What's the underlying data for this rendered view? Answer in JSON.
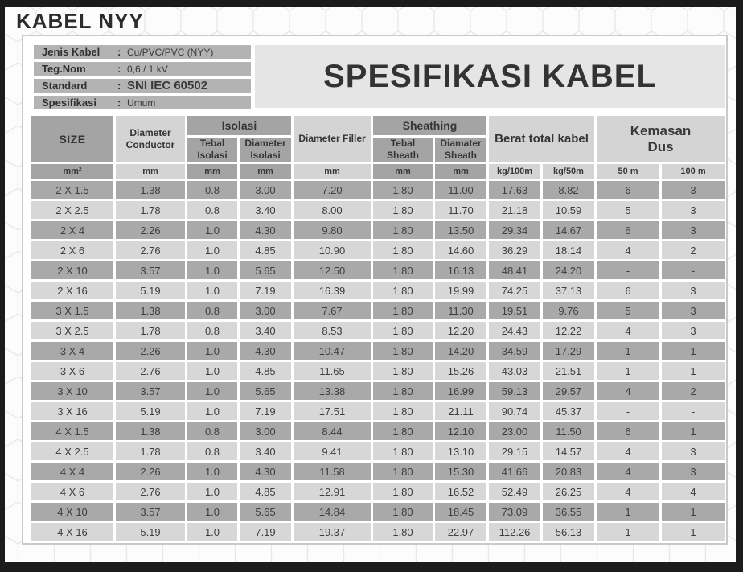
{
  "title": "KABEL NYY",
  "spec_title": "SPESIFIKASI KABEL",
  "info": {
    "colon": ":",
    "rows": [
      {
        "label": "Jenis Kabel",
        "value": "Cu/PVC/PVC (NYY)"
      },
      {
        "label": "Teg.Nom",
        "value": "0,6 / 1 kV"
      },
      {
        "label": "Standard",
        "value": "SNI IEC 60502"
      },
      {
        "label": "Spesifikasi",
        "value": "Umum"
      }
    ]
  },
  "table": {
    "headers": {
      "size": "SIZE",
      "diameter_conductor": "Diameter Conductor",
      "isolasi_group": "Isolasi",
      "tebal_isolasi": "Tebal Isolasi",
      "diameter_isolasi": "Diameter Isolasi",
      "diameter_filler": "Diameter Filler",
      "sheathing_group": "Sheathing",
      "tebal_sheath": "Tebal Sheath",
      "diamater_sheath": "Diamater Sheath",
      "berat_total": "Berat total kabel",
      "kemasan_dus": "Kemasan Dus"
    },
    "units": [
      "mm²",
      "mm",
      "mm",
      "mm",
      "mm",
      "mm",
      "mm",
      "kg/100m",
      "kg/50m",
      "50 m",
      "100 m"
    ],
    "unit_gray_columns": [
      0,
      2,
      3,
      5,
      6
    ],
    "rows": [
      [
        "2 X 1.5",
        "1.38",
        "0.8",
        "3.00",
        "7.20",
        "1.80",
        "11.00",
        "17.63",
        "8.82",
        "6",
        "3"
      ],
      [
        "2 X 2.5",
        "1.78",
        "0.8",
        "3.40",
        "8.00",
        "1.80",
        "11.70",
        "21.18",
        "10.59",
        "5",
        "3"
      ],
      [
        "2 X 4",
        "2.26",
        "1.0",
        "4.30",
        "9.80",
        "1.80",
        "13.50",
        "29.34",
        "14.67",
        "6",
        "3"
      ],
      [
        "2 X 6",
        "2.76",
        "1.0",
        "4.85",
        "10.90",
        "1.80",
        "14.60",
        "36.29",
        "18.14",
        "4",
        "2"
      ],
      [
        "2 X 10",
        "3.57",
        "1.0",
        "5.65",
        "12.50",
        "1.80",
        "16.13",
        "48.41",
        "24.20",
        "-",
        "-"
      ],
      [
        "2 X 16",
        "5.19",
        "1.0",
        "7.19",
        "16.39",
        "1.80",
        "19.99",
        "74.25",
        "37.13",
        "6",
        "3"
      ],
      [
        "3 X 1.5",
        "1.38",
        "0.8",
        "3.00",
        "7.67",
        "1.80",
        "11.30",
        "19.51",
        "9.76",
        "5",
        "3"
      ],
      [
        "3 X 2.5",
        "1.78",
        "0.8",
        "3.40",
        "8.53",
        "1.80",
        "12.20",
        "24.43",
        "12.22",
        "4",
        "3"
      ],
      [
        "3 X 4",
        "2.26",
        "1.0",
        "4.30",
        "10.47",
        "1.80",
        "14.20",
        "34.59",
        "17.29",
        "1",
        "1"
      ],
      [
        "3 X 6",
        "2.76",
        "1.0",
        "4.85",
        "11.65",
        "1.80",
        "15.26",
        "43.03",
        "21.51",
        "1",
        "1"
      ],
      [
        "3 X 10",
        "3.57",
        "1.0",
        "5.65",
        "13.38",
        "1.80",
        "16.99",
        "59.13",
        "29.57",
        "4",
        "2"
      ],
      [
        "3 X 16",
        "5.19",
        "1.0",
        "7.19",
        "17.51",
        "1.80",
        "21.11",
        "90.74",
        "45.37",
        "-",
        "-"
      ],
      [
        "4 X 1.5",
        "1.38",
        "0.8",
        "3.00",
        "8.44",
        "1.80",
        "12.10",
        "23.00",
        "11.50",
        "6",
        "1"
      ],
      [
        "4 X 2.5",
        "1.78",
        "0.8",
        "3.40",
        "9.41",
        "1.80",
        "13.10",
        "29.15",
        "14.57",
        "4",
        "3"
      ],
      [
        "4 X 4",
        "2.26",
        "1.0",
        "4.30",
        "11.58",
        "1.80",
        "15.30",
        "41.66",
        "20.83",
        "4",
        "3"
      ],
      [
        "4 X 6",
        "2.76",
        "1.0",
        "4.85",
        "12.91",
        "1.80",
        "16.52",
        "52.49",
        "26.25",
        "4",
        "4"
      ],
      [
        "4 X 10",
        "3.57",
        "1.0",
        "5.65",
        "14.84",
        "1.80",
        "18.45",
        "73.09",
        "36.55",
        "1",
        "1"
      ],
      [
        "4 X 16",
        "5.19",
        "1.0",
        "7.19",
        "19.37",
        "1.80",
        "22.97",
        "112.26",
        "56.13",
        "1",
        "1"
      ]
    ]
  },
  "colors": {
    "frame_black": "#1b1b1b",
    "header_gray": "#a4a4a4",
    "header_light": "#d4d4d4",
    "row_dark": "#a9a9a9",
    "row_light": "#d7d7d7",
    "info_bar": "#b3b3b3",
    "spec_box_bg": "#e5e5e5",
    "panel_border": "#c9c9c9"
  }
}
